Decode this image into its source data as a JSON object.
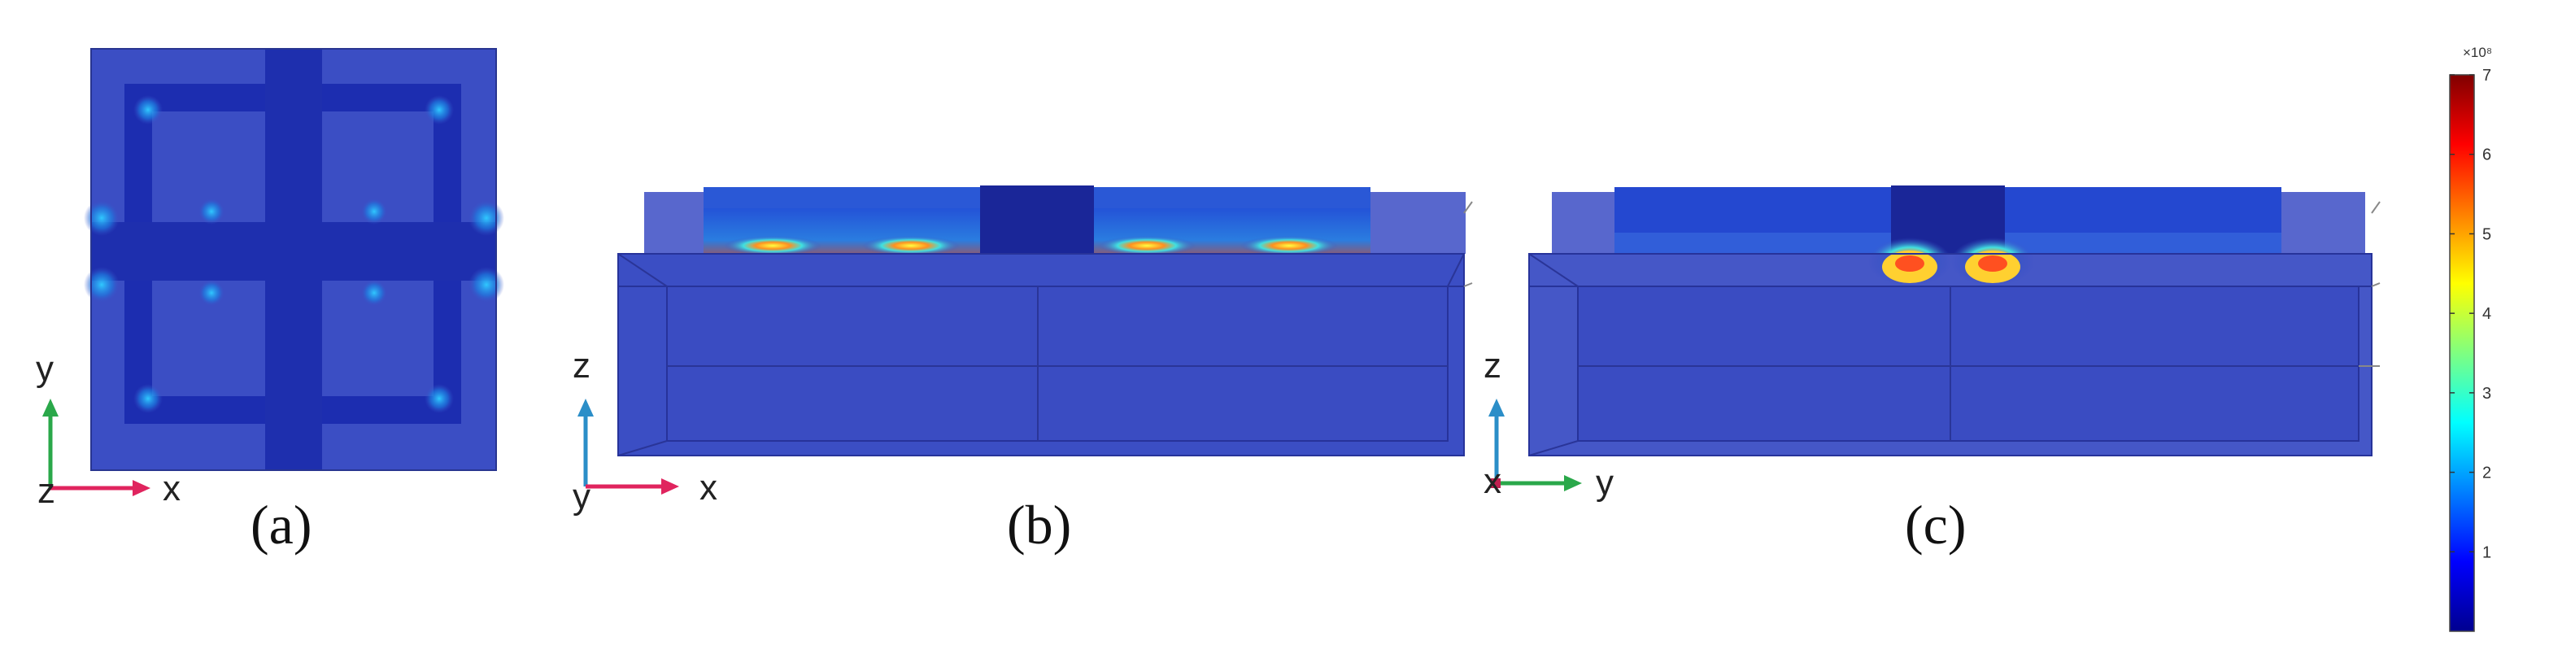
{
  "panels": [
    {
      "label": "(a)",
      "axes": {
        "vertical": "y",
        "horizontal": "x",
        "out_of_plane": "z"
      }
    },
    {
      "label": "(b)",
      "axes": {
        "vertical": "z",
        "horizontal": "x",
        "out_of_plane": "y"
      }
    },
    {
      "label": "(c)",
      "axes": {
        "vertical": "z",
        "horizontal": "y",
        "out_of_plane": "x"
      }
    }
  ],
  "colorbar": {
    "exponent_label": "×10⁸",
    "min": 0,
    "max": 7,
    "ticks": [
      "1",
      "2",
      "3",
      "4",
      "5",
      "6",
      "7"
    ],
    "colormap": "jet"
  },
  "colors": {
    "structure_fill": "#3a4fc6",
    "dark_fill": "#1f2fa8",
    "axis_x": "#e0245e",
    "axis_y": "#2aa84a",
    "axis_z": "#2b8ec8"
  }
}
